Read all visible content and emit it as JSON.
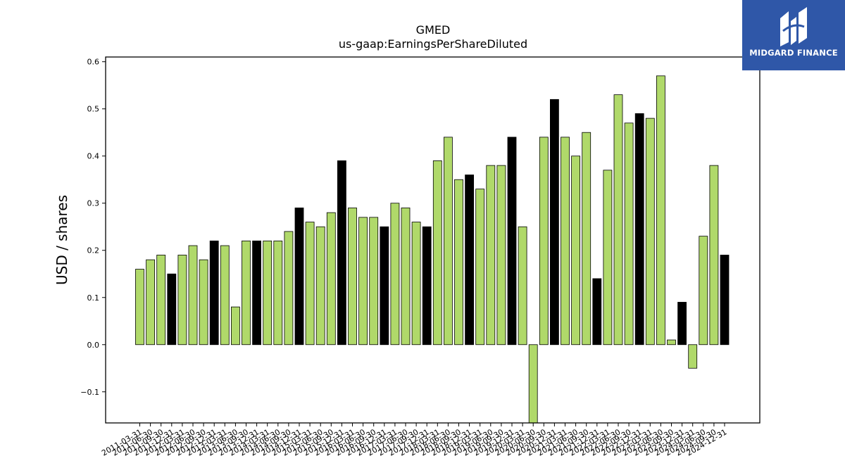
{
  "brand": {
    "name": "MIDGARD FINANCE",
    "icon": "midgard-logo-icon",
    "color": "#2f57a8"
  },
  "chart_data": {
    "type": "bar",
    "title": "GMED",
    "subtitle": "us-gaap:EarningsPerShareDiluted",
    "xlabel": "",
    "ylabel": "USD / shares",
    "ylim": [
      -0.166,
      0.61
    ],
    "yticks": [
      -0.1,
      0.0,
      0.1,
      0.2,
      0.3,
      0.4,
      0.5,
      0.6
    ],
    "ytick_labels": [
      "−0.1",
      "0.0",
      "0.1",
      "0.2",
      "0.3",
      "0.4",
      "0.5",
      "0.6"
    ],
    "grid": false,
    "colors": {
      "quarterly": "#b0d96a",
      "annual": "#000000",
      "edge": "#000000"
    },
    "categories": [
      "2011-03-31",
      "2011-06-30",
      "2011-09-30",
      "2011-12-31",
      "2012-03-31",
      "2012-06-30",
      "2012-09-30",
      "2012-12-31",
      "2013-03-31",
      "2013-06-30",
      "2013-09-30",
      "2013-12-31",
      "2014-03-31",
      "2014-06-30",
      "2014-09-30",
      "2014-12-31",
      "2015-03-31",
      "2015-06-30",
      "2015-09-30",
      "2015-12-31",
      "2016-03-31",
      "2016-06-30",
      "2016-09-30",
      "2016-12-31",
      "2017-03-31",
      "2017-06-30",
      "2017-09-30",
      "2017-12-31",
      "2018-03-31",
      "2018-06-30",
      "2018-09-30",
      "2018-12-31",
      "2019-03-31",
      "2019-06-30",
      "2019-09-30",
      "2019-12-31",
      "2020-03-31",
      "2020-06-30",
      "2020-09-30",
      "2020-12-31",
      "2021-03-31",
      "2021-06-30",
      "2021-09-30",
      "2021-12-31",
      "2022-03-31",
      "2022-06-30",
      "2022-09-30",
      "2022-12-31",
      "2023-03-31",
      "2023-06-30",
      "2023-09-30",
      "2023-12-31",
      "2024-03-31",
      "2024-06-30",
      "2024-09-30",
      "2024-12-31"
    ],
    "values": [
      0.16,
      0.18,
      0.19,
      0.15,
      0.19,
      0.21,
      0.18,
      0.22,
      0.21,
      0.08,
      0.22,
      0.22,
      0.22,
      0.22,
      0.24,
      0.29,
      0.26,
      0.25,
      0.28,
      0.39,
      0.29,
      0.27,
      0.27,
      0.25,
      0.3,
      0.29,
      0.26,
      0.25,
      0.39,
      0.44,
      0.35,
      0.36,
      0.33,
      0.38,
      0.38,
      0.44,
      0.25,
      -0.17,
      0.44,
      0.52,
      0.44,
      0.4,
      0.45,
      0.14,
      0.37,
      0.53,
      0.47,
      0.49,
      0.48,
      0.57,
      0.01,
      0.09,
      -0.05,
      0.23,
      0.38,
      0.19
    ],
    "annual": [
      false,
      false,
      false,
      true,
      false,
      false,
      false,
      true,
      false,
      false,
      false,
      true,
      false,
      false,
      false,
      true,
      false,
      false,
      false,
      true,
      false,
      false,
      false,
      true,
      false,
      false,
      false,
      true,
      false,
      false,
      false,
      true,
      false,
      false,
      false,
      true,
      false,
      false,
      false,
      true,
      false,
      false,
      false,
      true,
      false,
      false,
      false,
      true,
      false,
      false,
      false,
      true,
      false,
      false,
      false,
      true
    ]
  }
}
